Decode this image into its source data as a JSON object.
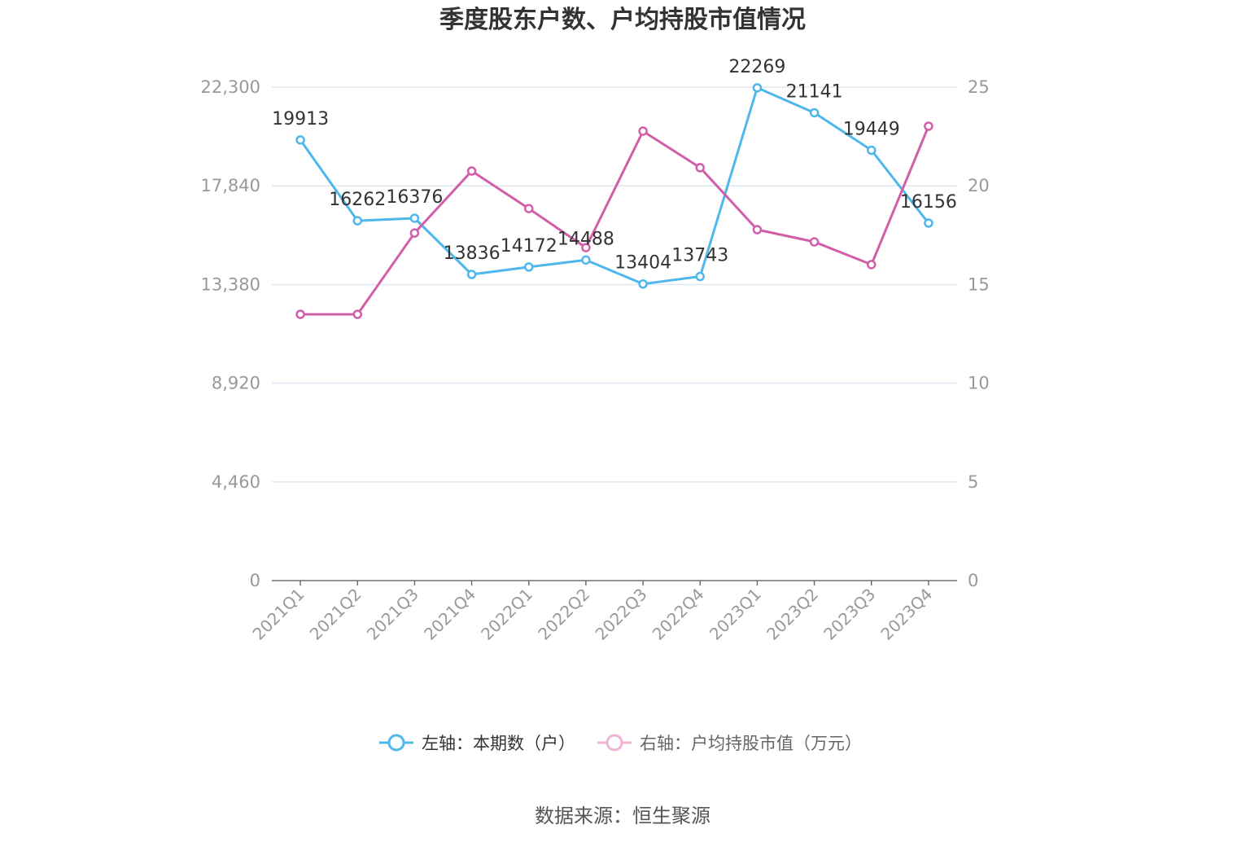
{
  "chart_data": {
    "type": "line",
    "title": "季度股东户数、户均持股市值情况",
    "categories": [
      "2021Q1",
      "2021Q2",
      "2021Q3",
      "2021Q4",
      "2022Q1",
      "2022Q2",
      "2022Q3",
      "2022Q4",
      "2023Q1",
      "2023Q2",
      "2023Q3",
      "2023Q4"
    ],
    "series": [
      {
        "name": "左轴：本期数（户）",
        "axis": "left",
        "color": "#4eb7ec",
        "legend_color": "#4eb7ec",
        "data_labels": true,
        "values": [
          19913,
          16262,
          16376,
          13836,
          14172,
          14488,
          13404,
          13743,
          22269,
          21141,
          19449,
          16156
        ]
      },
      {
        "name": "右轴：户均持股市值（万元）",
        "axis": "right",
        "color": "#d25eaa",
        "legend_color": "#f0b3d7",
        "data_labels": false,
        "values": [
          13.49,
          13.49,
          17.61,
          20.75,
          18.85,
          16.87,
          22.77,
          20.92,
          17.78,
          17.16,
          16.01,
          23.02
        ]
      }
    ],
    "y_left": {
      "range": [
        0,
        22300
      ],
      "ticks": [
        0,
        4460,
        8920,
        13380,
        17840,
        22300
      ]
    },
    "y_right": {
      "range": [
        0,
        25
      ],
      "ticks": [
        0,
        5,
        10,
        15,
        20,
        25
      ]
    },
    "grid": true,
    "legend_position": "bottom-center"
  },
  "source": "数据来源：恒生聚源"
}
